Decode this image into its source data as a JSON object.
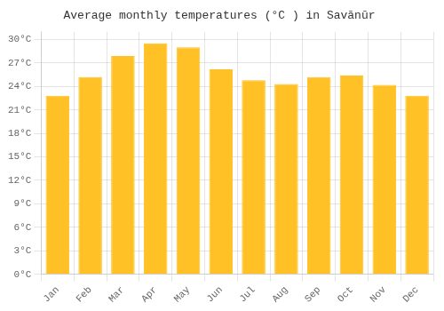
{
  "chart_data": {
    "type": "bar",
    "title": "Average monthly temperatures (°C ) in Savānūr",
    "categories": [
      "Jan",
      "Feb",
      "Mar",
      "Apr",
      "May",
      "Jun",
      "Jul",
      "Aug",
      "Sep",
      "Oct",
      "Nov",
      "Dec"
    ],
    "values": [
      22.8,
      25.2,
      27.9,
      29.5,
      29.0,
      26.2,
      24.8,
      24.3,
      25.2,
      25.4,
      24.2,
      22.8
    ],
    "color": "#FFC125",
    "ylim": [
      0,
      31
    ],
    "yticks": [
      {
        "value": 0,
        "label": "0°C"
      },
      {
        "value": 3,
        "label": "3°C"
      },
      {
        "value": 6,
        "label": "6°C"
      },
      {
        "value": 9,
        "label": "9°C"
      },
      {
        "value": 12,
        "label": "12°C"
      },
      {
        "value": 15,
        "label": "15°C"
      },
      {
        "value": 18,
        "label": "18°C"
      },
      {
        "value": 21,
        "label": "21°C"
      },
      {
        "value": 24,
        "label": "24°C"
      },
      {
        "value": 27,
        "label": "27°C"
      },
      {
        "value": 30,
        "label": "30°C"
      }
    ],
    "grid": true
  }
}
